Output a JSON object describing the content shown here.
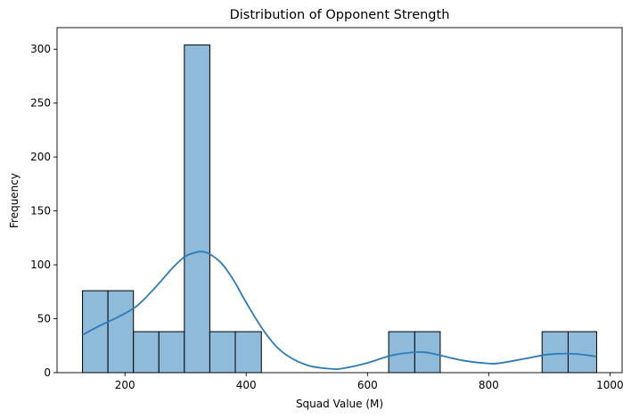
{
  "chart_data": {
    "type": "bar",
    "title": "Distribution of Opponent Strength",
    "xlabel": "Squad Value (M)",
    "ylabel": "Frequency",
    "xlim": [
      88,
      1020
    ],
    "ylim": [
      0,
      320
    ],
    "xticks": [
      200,
      400,
      600,
      800,
      1000
    ],
    "yticks": [
      0,
      50,
      100,
      150,
      200,
      250,
      300
    ],
    "grid": false,
    "bar_color": "#8fbbdb",
    "bar_edge_color": "#000000",
    "kde_color": "#2b7bb9",
    "bins": [
      {
        "start": 130,
        "end": 172,
        "value": 76
      },
      {
        "start": 172,
        "end": 214,
        "value": 76
      },
      {
        "start": 214,
        "end": 256,
        "value": 38
      },
      {
        "start": 256,
        "end": 298,
        "value": 38
      },
      {
        "start": 298,
        "end": 340,
        "value": 304
      },
      {
        "start": 340,
        "end": 382,
        "value": 38
      },
      {
        "start": 382,
        "end": 425,
        "value": 38
      },
      {
        "start": 425,
        "end": 467,
        "value": 0
      },
      {
        "start": 467,
        "end": 509,
        "value": 0
      },
      {
        "start": 509,
        "end": 551,
        "value": 0
      },
      {
        "start": 551,
        "end": 593,
        "value": 0
      },
      {
        "start": 593,
        "end": 635,
        "value": 0
      },
      {
        "start": 635,
        "end": 678,
        "value": 38
      },
      {
        "start": 678,
        "end": 720,
        "value": 38
      },
      {
        "start": 720,
        "end": 762,
        "value": 0
      },
      {
        "start": 762,
        "end": 804,
        "value": 0
      },
      {
        "start": 804,
        "end": 846,
        "value": 0
      },
      {
        "start": 846,
        "end": 888,
        "value": 0
      },
      {
        "start": 888,
        "end": 931,
        "value": 38
      },
      {
        "start": 931,
        "end": 978,
        "value": 38
      }
    ],
    "kde": {
      "x": [
        130,
        160,
        190,
        220,
        250,
        280,
        300,
        320,
        330,
        340,
        360,
        380,
        400,
        430,
        460,
        500,
        540,
        560,
        600,
        640,
        680,
        700,
        720,
        760,
        800,
        820,
        860,
        900,
        940,
        978
      ],
      "y": [
        35,
        44,
        52,
        62,
        79,
        98,
        108,
        112,
        112,
        110,
        101,
        85,
        65,
        38,
        19,
        7,
        3.5,
        4,
        9,
        16,
        19,
        18.5,
        16,
        11,
        8.5,
        9,
        13,
        17,
        17.5,
        15
      ]
    }
  }
}
